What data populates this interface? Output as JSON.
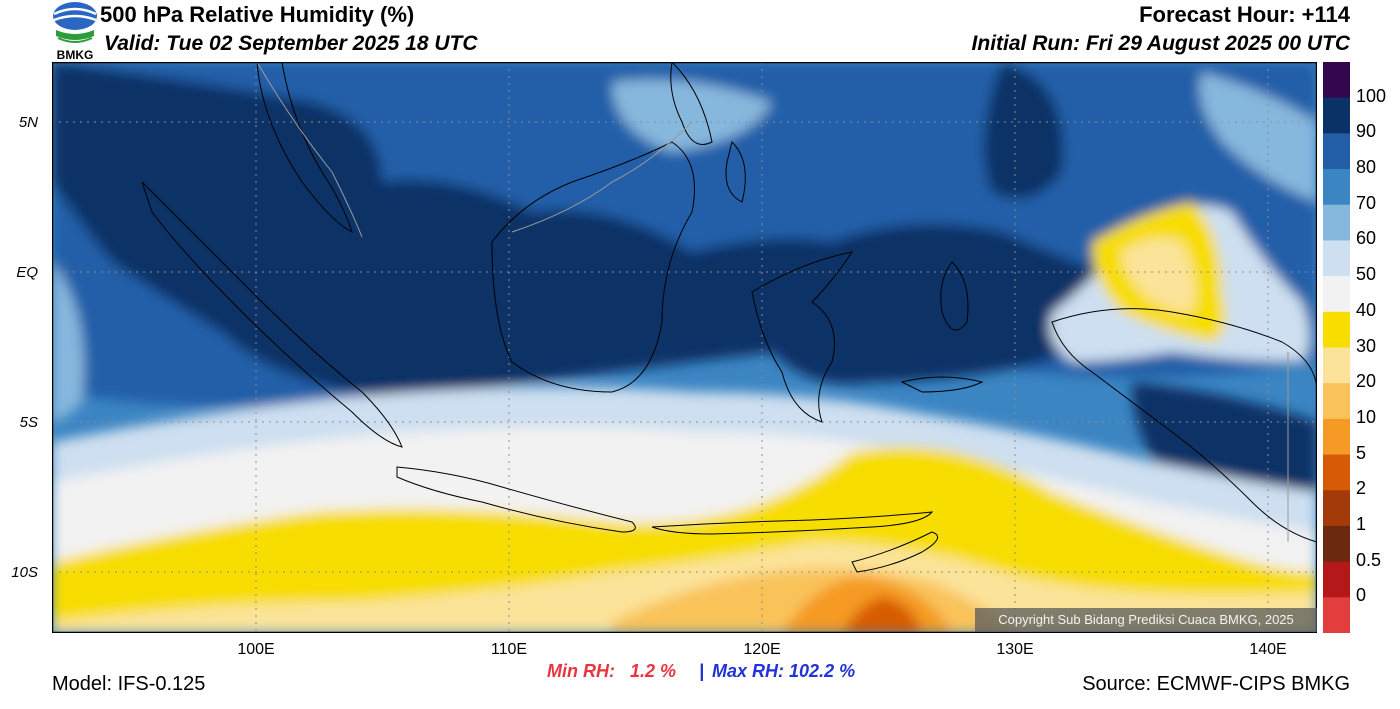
{
  "header": {
    "title": "500 hPa Relative Humidity (%)",
    "valid": "Valid: Tue 02 September 2025 18 UTC",
    "forecast_hour": "Forecast Hour: +114",
    "initial_run": "Initial Run: Fri 29 August 2025 00 UTC"
  },
  "logo": {
    "text": "BMKG"
  },
  "axes": {
    "lat_labels": [
      "5N",
      "EQ",
      "5S",
      "10S"
    ],
    "lon_labels": [
      "100E",
      "110E",
      "120E",
      "130E",
      "140E"
    ]
  },
  "colorbar": {
    "labels": [
      "100",
      "90",
      "80",
      "70",
      "60",
      "50",
      "40",
      "30",
      "20",
      "10",
      "5",
      "2",
      "1",
      "0.5",
      "0"
    ],
    "colors": [
      "#33074f",
      "#0b3266",
      "#225fa8",
      "#3c85c3",
      "#86b7dd",
      "#cddff0",
      "#f2f2f2",
      "#f7dd00",
      "#fbe39a",
      "#f9c35a",
      "#f59a24",
      "#d75b06",
      "#a23a09",
      "#6b2a10",
      "#b51818",
      "#e43d3d"
    ]
  },
  "stats": {
    "min_label": "Min RH:",
    "min_value": "1.2 %",
    "separator": "|",
    "max_label": "Max RH:",
    "max_value": "102.2 %",
    "min_color": "#e8353f",
    "max_color": "#2033d8"
  },
  "footer": {
    "model": "Model: IFS-0.125",
    "source": "Source: ECMWF-CIPS BMKG",
    "copyright": "Copyright Sub Bidang Prediksi Cuaca BMKG, 2025"
  }
}
